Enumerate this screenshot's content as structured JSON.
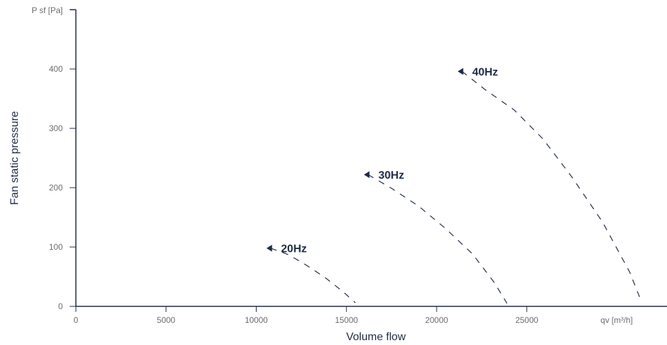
{
  "chart_data": {
    "type": "line",
    "xlabel": "Volume flow",
    "ylabel": "Fan static pressure",
    "x_unit_label": "qv [m³/h]",
    "y_unit_label": "P sf [Pa]",
    "xlim": [
      0,
      32500
    ],
    "ylim": [
      0,
      500
    ],
    "x_ticks": [
      0,
      5000,
      10000,
      15000,
      20000,
      25000
    ],
    "y_ticks": [
      0,
      100,
      200,
      300,
      400
    ],
    "grid": false,
    "colors": {
      "axis": "#1e2a44",
      "line": "#1e2a44",
      "tick_text": "#6b6b6b"
    },
    "series": [
      {
        "name": "20Hz",
        "x": [
          10800,
          11800,
          12800,
          13800,
          14800,
          15500
        ],
        "y": [
          98,
          87,
          69,
          49,
          25,
          6
        ]
      },
      {
        "name": "30Hz",
        "x": [
          16200,
          17500,
          19000,
          20500,
          22000,
          23200,
          23900
        ],
        "y": [
          222,
          199,
          169,
          131,
          88,
          40,
          5
        ]
      },
      {
        "name": "40Hz",
        "x": [
          21400,
          22700,
          24300,
          25900,
          27500,
          29200,
          30700,
          31300
        ],
        "y": [
          396,
          365,
          331,
          282,
          218,
          142,
          58,
          12
        ]
      }
    ]
  }
}
